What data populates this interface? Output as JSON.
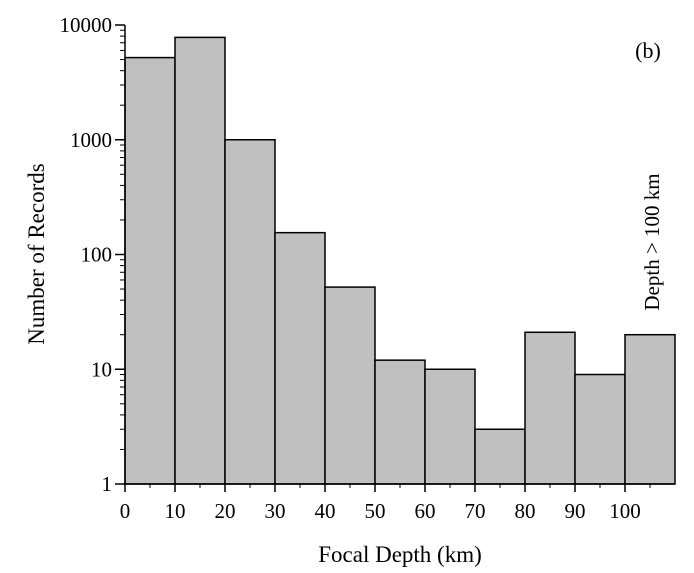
{
  "chart_data": {
    "type": "bar",
    "title": "",
    "panel_label": "(b)",
    "xlabel": "Focal Depth (km)",
    "ylabel": "Number of Records",
    "y_scale": "log",
    "ylim": [
      1,
      10000
    ],
    "xlim": [
      0,
      110
    ],
    "grid": false,
    "bar_color": "#c0c0c0",
    "bins": [
      {
        "x0": 0,
        "x1": 10,
        "value": 5200
      },
      {
        "x0": 10,
        "x1": 20,
        "value": 7800
      },
      {
        "x0": 20,
        "x1": 30,
        "value": 1000
      },
      {
        "x0": 30,
        "x1": 40,
        "value": 155
      },
      {
        "x0": 40,
        "x1": 50,
        "value": 52
      },
      {
        "x0": 50,
        "x1": 60,
        "value": 12
      },
      {
        "x0": 60,
        "x1": 70,
        "value": 10
      },
      {
        "x0": 70,
        "x1": 80,
        "value": 3
      },
      {
        "x0": 80,
        "x1": 90,
        "value": 21
      },
      {
        "x0": 90,
        "x1": 100,
        "value": 9
      },
      {
        "x0": 100,
        "x1": 110,
        "value": 20
      }
    ],
    "x_ticks": [
      "0",
      "10",
      "20",
      "30",
      "40",
      "50",
      "60",
      "70",
      "80",
      "90",
      "100"
    ],
    "y_ticks": [
      "1",
      "10",
      "100",
      "1000",
      "10000"
    ],
    "annotation": "Depth > 100 km"
  }
}
